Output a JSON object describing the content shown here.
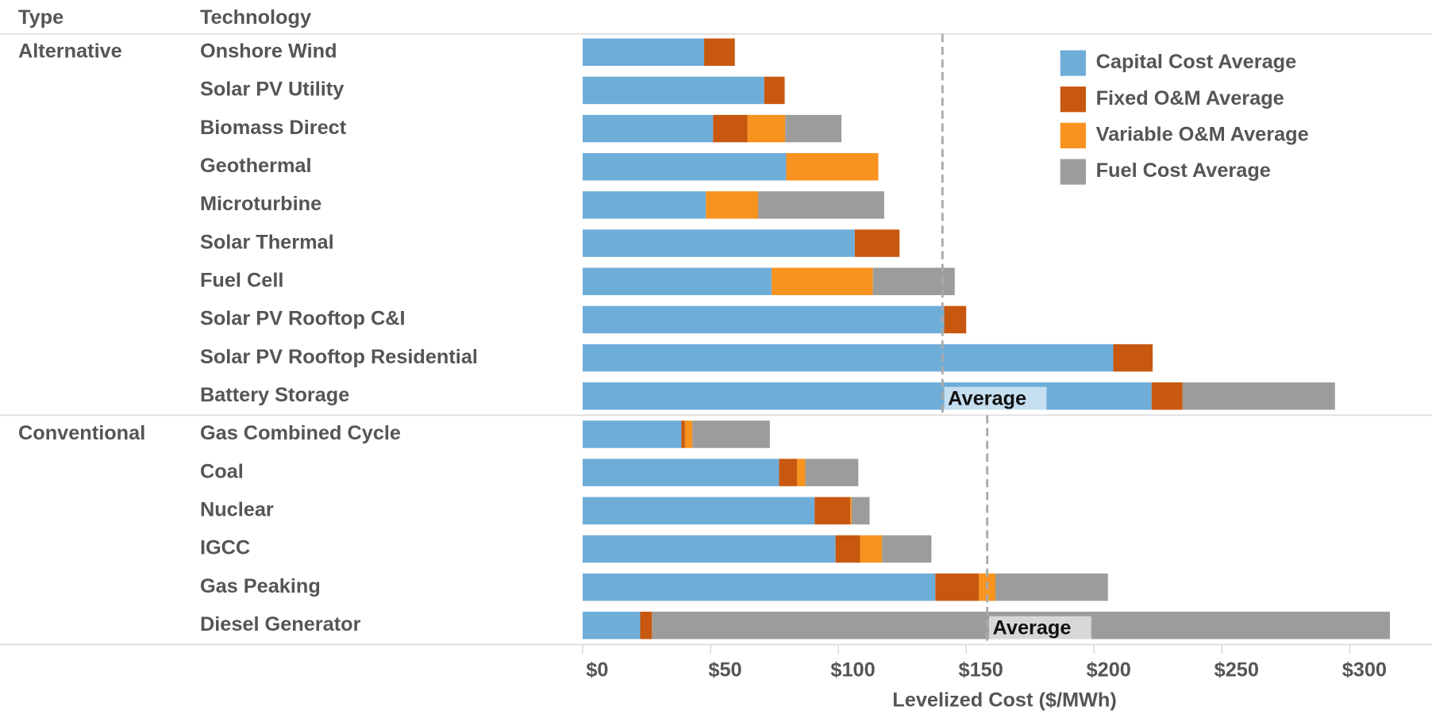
{
  "chart_data": {
    "type": "stacked_bar_horizontal",
    "column_headers": [
      "Type",
      "Technology"
    ],
    "x_label": "Levelized Cost ($/MWh)",
    "types": [
      "Alternative",
      null,
      null,
      null,
      null,
      null,
      null,
      null,
      null,
      null,
      "Conventional",
      null,
      null,
      null,
      null,
      null
    ],
    "categories": [
      "Onshore Wind",
      "Solar PV Utility",
      "Biomass Direct",
      "Geothermal",
      "Microturbine",
      "Solar Thermal",
      "Fuel Cell",
      "Solar PV Rooftop C&I",
      "Solar PV Rooftop Residential",
      "Battery Storage",
      "Gas Combined Cycle",
      "Coal",
      "Nuclear",
      "IGCC",
      "Gas Peaking",
      "Diesel Generator"
    ],
    "series": [
      {
        "name": "Capital Cost Average",
        "color": "#6fadd9",
        "values": [
          47.5,
          71,
          51,
          79.6,
          48.2,
          106.4,
          73.9,
          141.4,
          207.5,
          222.5,
          38.6,
          76.8,
          90.7,
          98.9,
          137.9,
          22.5
        ]
      },
      {
        "name": "Fixed O&M Average",
        "color": "#c8580f",
        "values": [
          12,
          8,
          13.5,
          0,
          0,
          17.5,
          0,
          8.6,
          15.4,
          12.1,
          1.4,
          7.1,
          14,
          9.6,
          17.1,
          4.6
        ]
      },
      {
        "name": "Variable O&M Average",
        "color": "#f8931f",
        "values": [
          0,
          0,
          14.7,
          36,
          20.4,
          0,
          39.6,
          0,
          0,
          0,
          2.9,
          3.2,
          0.5,
          8.6,
          6.4,
          0
        ]
      },
      {
        "name": "Fuel Cost Average",
        "color": "#9c9c9c",
        "values": [
          0,
          0,
          22,
          0,
          49.3,
          0,
          32,
          0,
          0,
          59.6,
          30.3,
          20.7,
          7,
          19.3,
          44,
          288.6
        ]
      }
    ],
    "reference_lines": [
      {
        "value": 140.7,
        "label": "Average"
      },
      {
        "value": 158.2,
        "label": "Average"
      }
    ],
    "xlim": [
      0,
      320
    ],
    "xticks": [
      {
        "value": 0,
        "label": "$0"
      },
      {
        "value": 50,
        "label": "$50"
      },
      {
        "value": 100,
        "label": "$100"
      },
      {
        "value": 150,
        "label": "$150"
      },
      {
        "value": 200,
        "label": "$200"
      },
      {
        "value": 250,
        "label": "$250"
      },
      {
        "value": 300,
        "label": "$300"
      }
    ],
    "legend": "top-right"
  }
}
